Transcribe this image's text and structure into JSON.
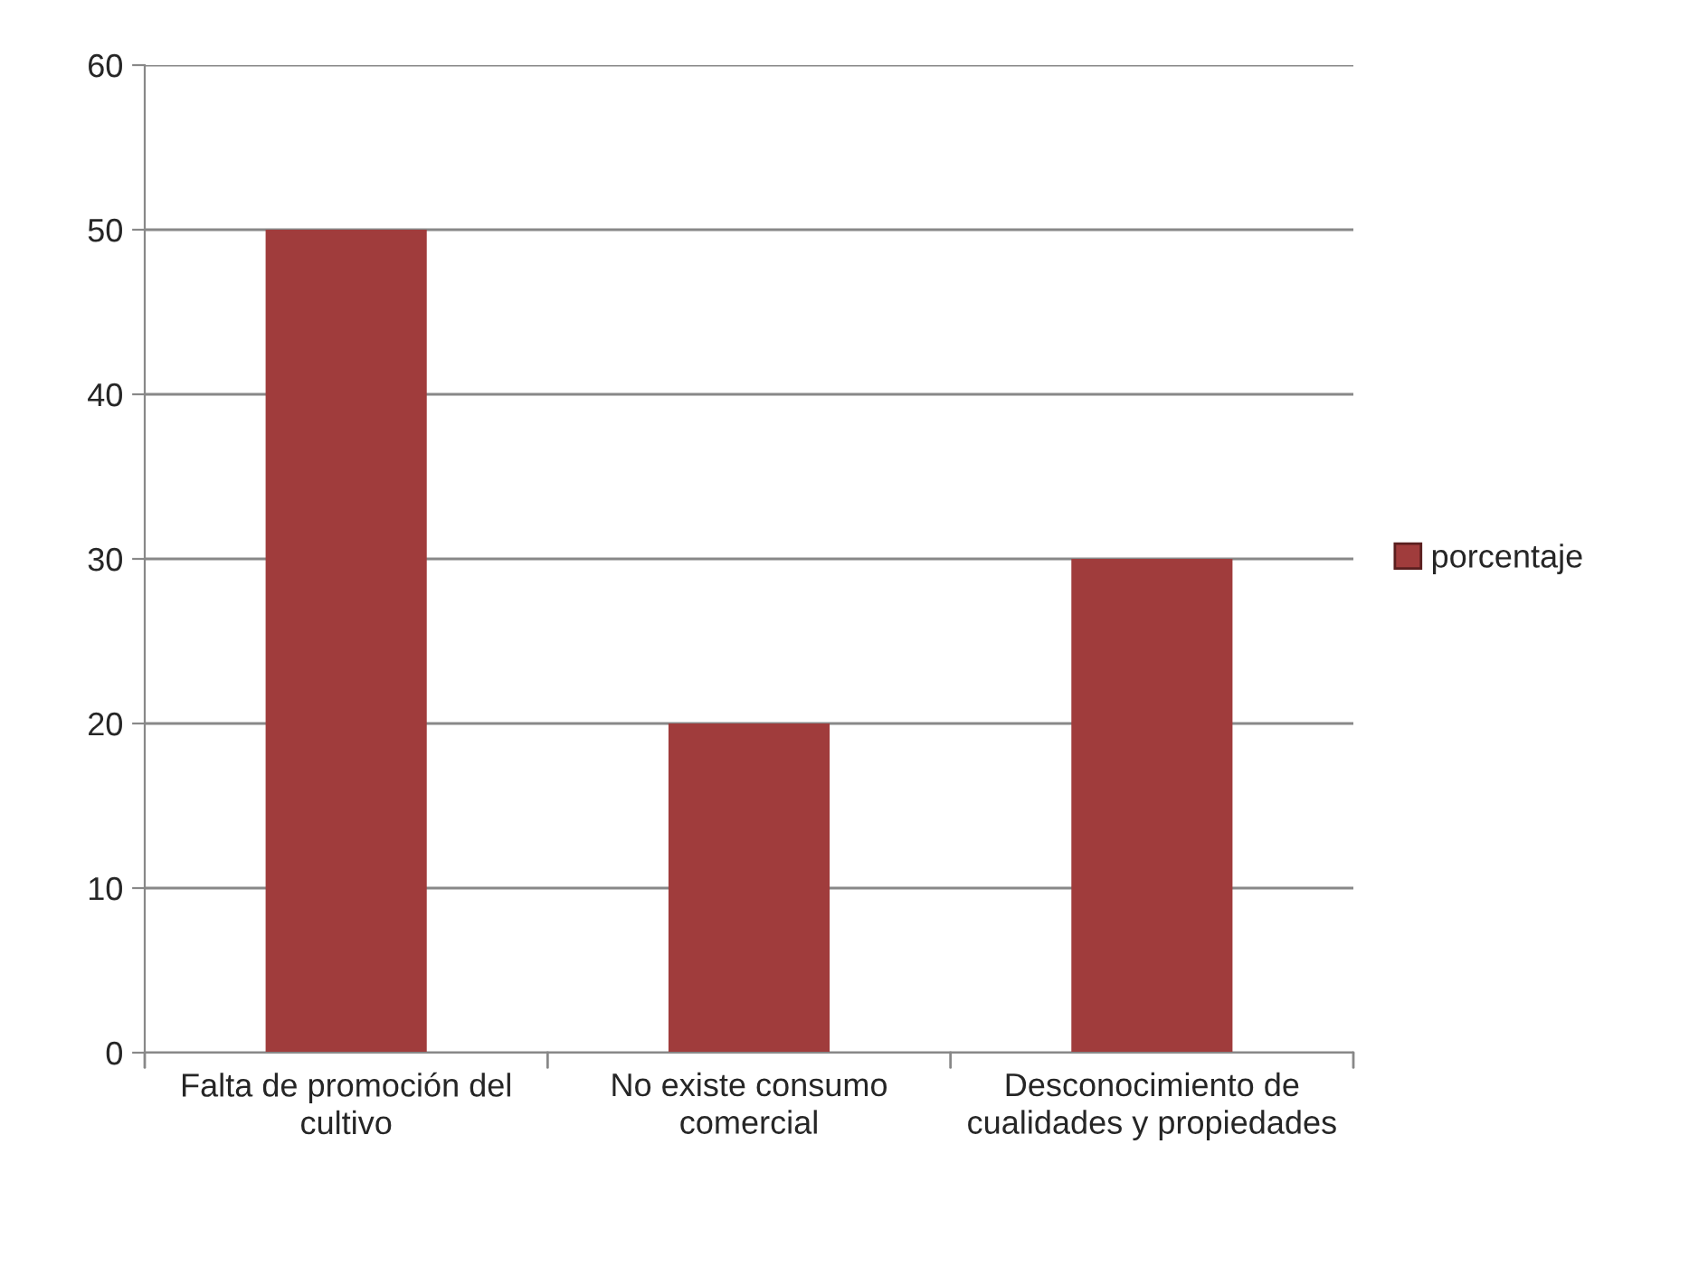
{
  "chart_data": {
    "type": "bar",
    "categories": [
      "Falta de promoción del cultivo",
      "No existe consumo comercial",
      "Desconocimiento de cualidades y propiedades"
    ],
    "series": [
      {
        "name": "porcentaje",
        "color": "#a03c3c",
        "values": [
          50,
          20,
          30
        ]
      }
    ],
    "ylim": [
      0,
      60
    ],
    "yticks": [
      0,
      10,
      20,
      30,
      40,
      50,
      60
    ],
    "grid": "y",
    "legend": "right"
  }
}
